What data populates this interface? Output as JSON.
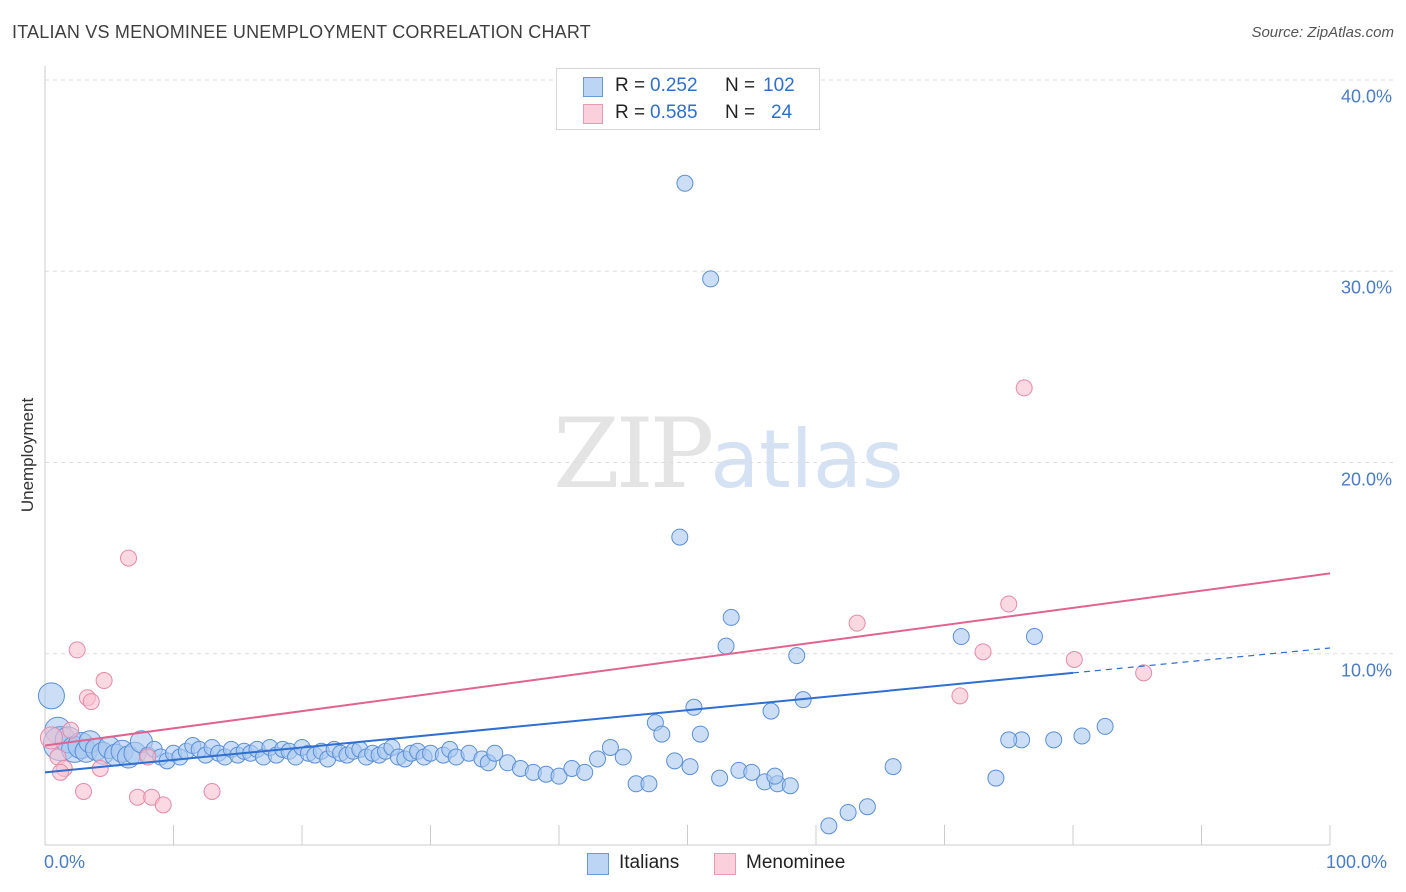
{
  "header": {
    "title": "ITALIAN VS MENOMINEE UNEMPLOYMENT CORRELATION CHART",
    "source": "Source: ZipAtlas.com"
  },
  "watermark": {
    "zip": "ZIP",
    "atlas": "atlas"
  },
  "stats": {
    "italians": {
      "r_label": "R =",
      "r_value": "0.252",
      "n_label": "N =",
      "n_value": "102"
    },
    "menominee": {
      "r_label": "R =",
      "r_value": "0.585",
      "n_label": "N =",
      "n_value": "24"
    }
  },
  "legend": {
    "italians": "Italians",
    "menominee": "Menominee"
  },
  "colors": {
    "italians_fill": "#a9c8f0",
    "italians_stroke": "#5b8fd6",
    "italians_line": "#2f6fcf",
    "menominee_fill": "#f7bfd0",
    "menominee_stroke": "#e58aa8",
    "menominee_line": "#e0648e",
    "tick_text": "#4a7cc6",
    "grid": "#dddddd"
  },
  "chart_data": {
    "type": "scatter",
    "title": "ITALIAN VS MENOMINEE UNEMPLOYMENT CORRELATION CHART",
    "xlabel": "",
    "ylabel": "Unemployment",
    "xlim": [
      0,
      100
    ],
    "ylim": [
      0,
      40
    ],
    "y_ticks": [
      "10.0%",
      "20.0%",
      "30.0%",
      "40.0%"
    ],
    "y_tick_values": [
      10,
      20,
      30,
      40
    ],
    "x_ticks": [
      "0.0%",
      "100.0%"
    ],
    "grid": "horizontal dashed",
    "legend_position": "bottom-center",
    "series": [
      {
        "name": "Italians",
        "trend": {
          "x0": 0,
          "y0": 3.8,
          "x1": 80,
          "y1": 9.0,
          "dashed_to_x": 100,
          "dashed_to_y": 10.3
        },
        "points": [
          {
            "x": 0.5,
            "y": 7.8,
            "s": 3
          },
          {
            "x": 1.0,
            "y": 6.0,
            "s": 3
          },
          {
            "x": 1.2,
            "y": 5.3,
            "s": 4
          },
          {
            "x": 1.8,
            "y": 5.5,
            "s": 3
          },
          {
            "x": 2.3,
            "y": 5.0,
            "s": 3
          },
          {
            "x": 2.8,
            "y": 5.2,
            "s": 3
          },
          {
            "x": 3.2,
            "y": 4.9,
            "s": 2
          },
          {
            "x": 3.5,
            "y": 5.4,
            "s": 2
          },
          {
            "x": 4.0,
            "y": 5.0,
            "s": 2
          },
          {
            "x": 4.5,
            "y": 4.8,
            "s": 2
          },
          {
            "x": 5.0,
            "y": 5.1,
            "s": 2
          },
          {
            "x": 5.5,
            "y": 4.7,
            "s": 2
          },
          {
            "x": 6.0,
            "y": 4.9,
            "s": 2
          },
          {
            "x": 6.5,
            "y": 4.6,
            "s": 2
          },
          {
            "x": 7.0,
            "y": 4.8,
            "s": 2
          },
          {
            "x": 7.5,
            "y": 5.4,
            "s": 2
          },
          {
            "x": 8.0,
            "y": 4.7,
            "s": 1
          },
          {
            "x": 8.5,
            "y": 5.0,
            "s": 1
          },
          {
            "x": 9.0,
            "y": 4.6,
            "s": 1
          },
          {
            "x": 9.5,
            "y": 4.4,
            "s": 1
          },
          {
            "x": 10.0,
            "y": 4.8,
            "s": 1
          },
          {
            "x": 10.5,
            "y": 4.6,
            "s": 1
          },
          {
            "x": 11.0,
            "y": 4.9,
            "s": 1
          },
          {
            "x": 11.5,
            "y": 5.2,
            "s": 1
          },
          {
            "x": 12.0,
            "y": 5.0,
            "s": 1
          },
          {
            "x": 12.5,
            "y": 4.7,
            "s": 1
          },
          {
            "x": 13.0,
            "y": 5.1,
            "s": 1
          },
          {
            "x": 13.5,
            "y": 4.8,
            "s": 1
          },
          {
            "x": 14.0,
            "y": 4.6,
            "s": 1
          },
          {
            "x": 14.5,
            "y": 5.0,
            "s": 1
          },
          {
            "x": 15.0,
            "y": 4.7,
            "s": 1
          },
          {
            "x": 15.5,
            "y": 4.9,
            "s": 1
          },
          {
            "x": 16.0,
            "y": 4.8,
            "s": 1
          },
          {
            "x": 16.5,
            "y": 5.0,
            "s": 1
          },
          {
            "x": 17.0,
            "y": 4.6,
            "s": 1
          },
          {
            "x": 17.5,
            "y": 5.1,
            "s": 1
          },
          {
            "x": 18.0,
            "y": 4.7,
            "s": 1
          },
          {
            "x": 18.5,
            "y": 5.0,
            "s": 1
          },
          {
            "x": 19.0,
            "y": 4.9,
            "s": 1
          },
          {
            "x": 19.5,
            "y": 4.6,
            "s": 1
          },
          {
            "x": 20.0,
            "y": 5.1,
            "s": 1
          },
          {
            "x": 20.5,
            "y": 4.8,
            "s": 1
          },
          {
            "x": 21.0,
            "y": 4.7,
            "s": 1
          },
          {
            "x": 21.5,
            "y": 4.9,
            "s": 1
          },
          {
            "x": 22.0,
            "y": 4.5,
            "s": 1
          },
          {
            "x": 22.5,
            "y": 5.0,
            "s": 1
          },
          {
            "x": 23.0,
            "y": 4.8,
            "s": 1
          },
          {
            "x": 23.5,
            "y": 4.7,
            "s": 1
          },
          {
            "x": 24.0,
            "y": 4.9,
            "s": 1
          },
          {
            "x": 24.5,
            "y": 5.0,
            "s": 1
          },
          {
            "x": 25.0,
            "y": 4.6,
            "s": 1
          },
          {
            "x": 25.5,
            "y": 4.8,
            "s": 1
          },
          {
            "x": 26.0,
            "y": 4.7,
            "s": 1
          },
          {
            "x": 26.5,
            "y": 4.9,
            "s": 1
          },
          {
            "x": 27.0,
            "y": 5.1,
            "s": 1
          },
          {
            "x": 27.5,
            "y": 4.6,
            "s": 1
          },
          {
            "x": 28.0,
            "y": 4.5,
            "s": 1
          },
          {
            "x": 28.5,
            "y": 4.8,
            "s": 1
          },
          {
            "x": 29.0,
            "y": 4.9,
            "s": 1
          },
          {
            "x": 29.5,
            "y": 4.6,
            "s": 1
          },
          {
            "x": 30.0,
            "y": 4.8,
            "s": 1
          },
          {
            "x": 31.0,
            "y": 4.7,
            "s": 1
          },
          {
            "x": 31.5,
            "y": 5.0,
            "s": 1
          },
          {
            "x": 32.0,
            "y": 4.6,
            "s": 1
          },
          {
            "x": 33.0,
            "y": 4.8,
            "s": 1
          },
          {
            "x": 34.0,
            "y": 4.5,
            "s": 1
          },
          {
            "x": 34.5,
            "y": 4.3,
            "s": 1
          },
          {
            "x": 35.0,
            "y": 4.8,
            "s": 1
          },
          {
            "x": 36.0,
            "y": 4.3,
            "s": 1
          },
          {
            "x": 37.0,
            "y": 4.0,
            "s": 1
          },
          {
            "x": 38.0,
            "y": 3.8,
            "s": 1
          },
          {
            "x": 39.0,
            "y": 3.7,
            "s": 1
          },
          {
            "x": 40.0,
            "y": 3.6,
            "s": 1
          },
          {
            "x": 41.0,
            "y": 4.0,
            "s": 1
          },
          {
            "x": 42.0,
            "y": 3.8,
            "s": 1
          },
          {
            "x": 43.0,
            "y": 4.5,
            "s": 1
          },
          {
            "x": 44.0,
            "y": 5.1,
            "s": 1
          },
          {
            "x": 45.0,
            "y": 4.6,
            "s": 1
          },
          {
            "x": 46.0,
            "y": 3.2,
            "s": 1
          },
          {
            "x": 47.0,
            "y": 3.2,
            "s": 1
          },
          {
            "x": 47.5,
            "y": 6.4,
            "s": 1
          },
          {
            "x": 48.0,
            "y": 5.8,
            "s": 1
          },
          {
            "x": 49.0,
            "y": 4.4,
            "s": 1
          },
          {
            "x": 50.5,
            "y": 7.2,
            "s": 1
          },
          {
            "x": 51.0,
            "y": 5.8,
            "s": 1
          },
          {
            "x": 53.0,
            "y": 10.4,
            "s": 1
          },
          {
            "x": 54.0,
            "y": 3.9,
            "s": 1
          },
          {
            "x": 55.0,
            "y": 3.8,
            "s": 1
          },
          {
            "x": 56.0,
            "y": 3.3,
            "s": 1
          },
          {
            "x": 56.5,
            "y": 7.0,
            "s": 1
          },
          {
            "x": 57.0,
            "y": 3.2,
            "s": 1
          },
          {
            "x": 58.0,
            "y": 3.1,
            "s": 1
          },
          {
            "x": 58.5,
            "y": 9.9,
            "s": 1
          },
          {
            "x": 59.0,
            "y": 7.6,
            "s": 1
          },
          {
            "x": 61.0,
            "y": 1.0,
            "s": 1
          },
          {
            "x": 62.5,
            "y": 1.7,
            "s": 1
          },
          {
            "x": 64.0,
            "y": 2.0,
            "s": 1
          },
          {
            "x": 66.0,
            "y": 4.1,
            "s": 1
          },
          {
            "x": 74.0,
            "y": 3.5,
            "s": 1
          },
          {
            "x": 77.0,
            "y": 10.9,
            "s": 1
          },
          {
            "x": 78.5,
            "y": 5.5,
            "s": 1
          },
          {
            "x": 76.0,
            "y": 5.5,
            "s": 1
          },
          {
            "x": 49.8,
            "y": 34.6,
            "s": 1
          },
          {
            "x": 51.8,
            "y": 29.6,
            "s": 1
          },
          {
            "x": 49.4,
            "y": 16.1,
            "s": 1
          },
          {
            "x": 53.4,
            "y": 11.9,
            "s": 1
          },
          {
            "x": 71.3,
            "y": 10.9,
            "s": 1
          },
          {
            "x": 75.0,
            "y": 5.5,
            "s": 1
          },
          {
            "x": 56.8,
            "y": 3.6,
            "s": 1
          },
          {
            "x": 50.2,
            "y": 4.1,
            "s": 1
          },
          {
            "x": 52.5,
            "y": 3.5,
            "s": 1
          },
          {
            "x": 80.7,
            "y": 5.7,
            "s": 1
          },
          {
            "x": 82.5,
            "y": 6.2,
            "s": 1
          }
        ]
      },
      {
        "name": "Menominee",
        "trend": {
          "x0": 0,
          "y0": 5.2,
          "x1": 100,
          "y1": 14.2
        },
        "points": [
          {
            "x": 0.5,
            "y": 5.6,
            "s": 2
          },
          {
            "x": 1.0,
            "y": 4.6,
            "s": 1
          },
          {
            "x": 1.5,
            "y": 4.0,
            "s": 1
          },
          {
            "x": 2.0,
            "y": 6.0,
            "s": 1
          },
          {
            "x": 2.5,
            "y": 10.2,
            "s": 1
          },
          {
            "x": 3.0,
            "y": 2.8,
            "s": 1
          },
          {
            "x": 3.3,
            "y": 7.7,
            "s": 1
          },
          {
            "x": 3.6,
            "y": 7.5,
            "s": 1
          },
          {
            "x": 4.3,
            "y": 4.0,
            "s": 1
          },
          {
            "x": 4.6,
            "y": 8.6,
            "s": 1
          },
          {
            "x": 6.5,
            "y": 15.0,
            "s": 1
          },
          {
            "x": 7.2,
            "y": 2.5,
            "s": 1
          },
          {
            "x": 8.3,
            "y": 2.5,
            "s": 1
          },
          {
            "x": 9.2,
            "y": 2.1,
            "s": 1
          },
          {
            "x": 13.0,
            "y": 2.8,
            "s": 1
          },
          {
            "x": 8.0,
            "y": 4.6,
            "s": 1
          },
          {
            "x": 1.2,
            "y": 3.8,
            "s": 1
          },
          {
            "x": 63.2,
            "y": 11.6,
            "s": 1
          },
          {
            "x": 71.2,
            "y": 7.8,
            "s": 1
          },
          {
            "x": 73.0,
            "y": 10.1,
            "s": 1
          },
          {
            "x": 75.0,
            "y": 12.6,
            "s": 1
          },
          {
            "x": 76.2,
            "y": 23.9,
            "s": 1
          },
          {
            "x": 80.1,
            "y": 9.7,
            "s": 1
          },
          {
            "x": 85.5,
            "y": 9.0,
            "s": 1
          }
        ]
      }
    ]
  }
}
